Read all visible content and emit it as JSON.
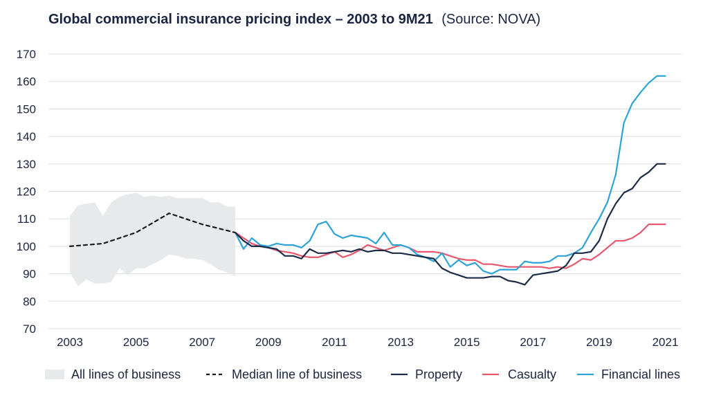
{
  "colors": {
    "band": "#e8e9eb",
    "median": "#1a1a1a",
    "property": "#1b2a45",
    "casualty": "#e8566b",
    "financial": "#2ba3d6",
    "grid": "#d9dde3",
    "text": "#1a2440"
  },
  "chart_data": {
    "type": "line",
    "title": "Global commercial insurance pricing index – 2003 to 9M21",
    "subtitle": "(Source: NOVA)",
    "xlabel": "",
    "ylabel": "",
    "xlim": [
      2003,
      2021.25
    ],
    "ylim": [
      70,
      170
    ],
    "grid": true,
    "legend_position": "bottom",
    "y_ticks": [
      "70",
      "80",
      "90",
      "100",
      "110",
      "120",
      "130",
      "140",
      "150",
      "160",
      "170"
    ],
    "x_ticks": [
      "2003",
      "2005",
      "2007",
      "2009",
      "2011",
      "2013",
      "2015",
      "2017",
      "2019",
      "2021"
    ],
    "band": {
      "name": "All lines of business",
      "x": [
        2003.0,
        2003.25,
        2003.5,
        2003.75,
        2004.0,
        2004.25,
        2004.5,
        2004.75,
        2005.0,
        2005.25,
        2005.5,
        2005.75,
        2006.0,
        2006.25,
        2006.5,
        2006.75,
        2007.0,
        2007.25,
        2007.5,
        2007.75,
        2008.0
      ],
      "upper": [
        111,
        115,
        115.5,
        116,
        111,
        116,
        118,
        119,
        119.5,
        118,
        118.5,
        118,
        118.5,
        117.5,
        117.5,
        117.5,
        117.5,
        116,
        116,
        114.5,
        114.5
      ],
      "lower": [
        90.5,
        85.5,
        88,
        86.5,
        86.5,
        87,
        92,
        89.5,
        92,
        92,
        93.5,
        95,
        97,
        96.5,
        95.5,
        95.5,
        95,
        93.5,
        91.5,
        90.5,
        89
      ]
    },
    "series": [
      {
        "name": "Median line of business",
        "x": [
          2003,
          2004,
          2005,
          2006,
          2007,
          2008
        ],
        "values": [
          100,
          101,
          105,
          112,
          108,
          105
        ]
      },
      {
        "name": "Property",
        "x": [
          2008.0,
          2008.25,
          2008.5,
          2008.75,
          2009.0,
          2009.25,
          2009.5,
          2009.75,
          2010.0,
          2010.25,
          2010.5,
          2010.75,
          2011.0,
          2011.25,
          2011.5,
          2011.75,
          2012.0,
          2012.25,
          2012.5,
          2012.75,
          2013.0,
          2013.25,
          2013.5,
          2013.75,
          2014.0,
          2014.25,
          2014.5,
          2014.75,
          2015.0,
          2015.25,
          2015.5,
          2015.75,
          2016.0,
          2016.25,
          2016.5,
          2016.75,
          2017.0,
          2017.25,
          2017.5,
          2017.75,
          2018.0,
          2018.25,
          2018.5,
          2018.75,
          2019.0,
          2019.25,
          2019.5,
          2019.75,
          2020.0,
          2020.25,
          2020.5,
          2020.75,
          2021.0
        ],
        "values": [
          105,
          102,
          100,
          100,
          99.5,
          99,
          96.5,
          96.5,
          95.5,
          99,
          97.5,
          97.5,
          98,
          98.5,
          98,
          99,
          98,
          98.5,
          98.5,
          97.5,
          97.5,
          97,
          96.5,
          96,
          95.5,
          92,
          90.5,
          89.5,
          88.5,
          88.5,
          88.5,
          89,
          89,
          87.5,
          87,
          86,
          89.5,
          90,
          90.5,
          91,
          93,
          97.5,
          97.5,
          98,
          102,
          110,
          115.5,
          119.5,
          121,
          125,
          127,
          130,
          130
        ]
      },
      {
        "name": "Casualty",
        "x": [
          2008.0,
          2008.25,
          2008.5,
          2008.75,
          2009.0,
          2009.25,
          2009.5,
          2009.75,
          2010.0,
          2010.25,
          2010.5,
          2010.75,
          2011.0,
          2011.25,
          2011.5,
          2011.75,
          2012.0,
          2012.25,
          2012.5,
          2012.75,
          2013.0,
          2013.25,
          2013.5,
          2013.75,
          2014.0,
          2014.25,
          2014.5,
          2014.75,
          2015.0,
          2015.25,
          2015.5,
          2015.75,
          2016.0,
          2016.25,
          2016.5,
          2016.75,
          2017.0,
          2017.25,
          2017.5,
          2017.75,
          2018.0,
          2018.25,
          2018.5,
          2018.75,
          2019.0,
          2019.25,
          2019.5,
          2019.75,
          2020.0,
          2020.25,
          2020.5,
          2020.75,
          2021.0
        ],
        "values": [
          105,
          103,
          101,
          100,
          99.5,
          98.5,
          98,
          97.5,
          96.5,
          96,
          96,
          97,
          98,
          96,
          97,
          98.5,
          100.5,
          99.5,
          98.5,
          99.5,
          100.5,
          99.5,
          98,
          98,
          98,
          97.5,
          96.5,
          95.5,
          95,
          95,
          93.5,
          93.5,
          93,
          92.5,
          92.5,
          92.5,
          92.5,
          92.5,
          92,
          92.5,
          92,
          93.5,
          95.5,
          95,
          97,
          99.5,
          102,
          102,
          103,
          105,
          108,
          108,
          108
        ]
      },
      {
        "name": "Financial lines",
        "x": [
          2008.0,
          2008.25,
          2008.5,
          2008.75,
          2009.0,
          2009.25,
          2009.5,
          2009.75,
          2010.0,
          2010.25,
          2010.5,
          2010.75,
          2011.0,
          2011.25,
          2011.5,
          2011.75,
          2012.0,
          2012.25,
          2012.5,
          2012.75,
          2013.0,
          2013.25,
          2013.5,
          2013.75,
          2014.0,
          2014.25,
          2014.5,
          2014.75,
          2015.0,
          2015.25,
          2015.5,
          2015.75,
          2016.0,
          2016.25,
          2016.5,
          2016.75,
          2017.0,
          2017.25,
          2017.5,
          2017.75,
          2018.0,
          2018.25,
          2018.5,
          2018.75,
          2019.0,
          2019.25,
          2019.5,
          2019.75,
          2020.0,
          2020.25,
          2020.5,
          2020.75,
          2021.0
        ],
        "values": [
          105,
          99,
          103,
          100.5,
          100,
          101,
          100.5,
          100.5,
          99.5,
          102,
          108,
          109,
          104.5,
          103,
          104,
          103.5,
          103,
          101,
          105,
          100.5,
          100.5,
          99.5,
          97,
          96,
          94.5,
          97.5,
          92.5,
          95,
          93,
          94,
          91,
          90,
          91.5,
          91.5,
          91.5,
          94.5,
          94,
          94,
          94.5,
          96.5,
          96.5,
          97.5,
          99.5,
          105,
          110,
          116,
          126,
          145,
          152,
          156,
          159.5,
          162,
          162
        ]
      }
    ],
    "legend": [
      {
        "key": "band",
        "label": "All lines of business"
      },
      {
        "key": "median",
        "label": "Median line of business"
      },
      {
        "key": "property",
        "label": "Property"
      },
      {
        "key": "casualty",
        "label": "Casualty"
      },
      {
        "key": "financial",
        "label": "Financial lines"
      }
    ]
  }
}
